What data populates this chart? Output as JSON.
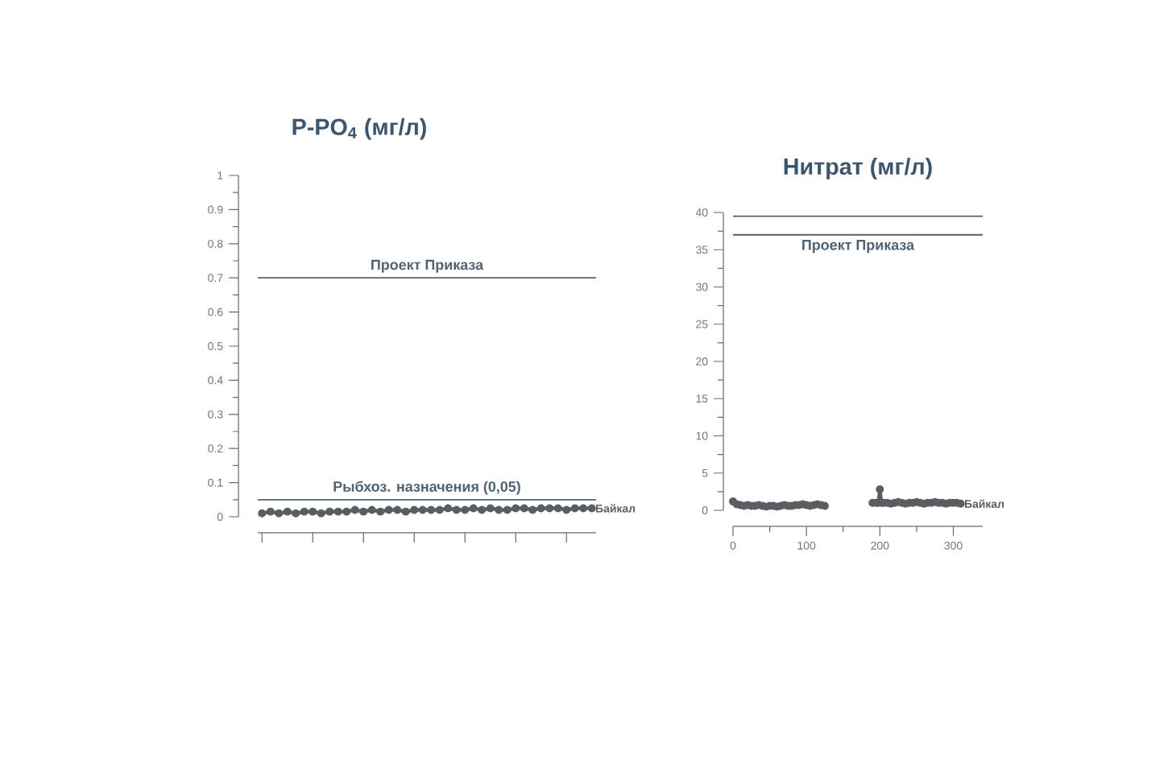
{
  "chart_data": [
    {
      "type": "line",
      "title": "P-PO$_{4}$ (мг/л)",
      "categories": [
        null,
        null,
        null,
        null,
        null,
        null,
        null,
        null,
        null,
        null,
        null,
        null,
        null,
        null,
        null,
        null,
        null,
        null,
        null,
        null,
        null,
        null,
        null,
        null,
        null,
        null,
        null,
        null,
        null,
        null,
        null,
        null,
        null,
        null,
        null,
        null,
        null,
        null,
        null,
        null
      ],
      "series": [
        {
          "name": "Байкал",
          "color": "#5a5e63",
          "values": [
            0.01,
            0.015,
            0.01,
            0.015,
            0.01,
            0.015,
            0.015,
            0.01,
            0.015,
            0.015,
            0.015,
            0.02,
            0.015,
            0.02,
            0.015,
            0.02,
            0.02,
            0.015,
            0.02,
            0.02,
            0.02,
            0.02,
            0.025,
            0.02,
            0.02,
            0.025,
            0.02,
            0.025,
            0.02,
            0.02,
            0.025,
            0.025,
            0.02,
            0.025,
            0.025,
            0.025,
            0.02,
            0.025,
            0.025,
            0.025
          ]
        }
      ],
      "ylim": [
        0,
        1
      ],
      "yticks": [
        0,
        {
          "value": 0.05,
          "label": null
        },
        0.1,
        {
          "value": 0.15,
          "label": null
        },
        0.2,
        {
          "value": 0.25,
          "label": null
        },
        0.3,
        {
          "value": 0.35,
          "label": null
        },
        0.4,
        {
          "value": 0.45,
          "label": null
        },
        0.5,
        {
          "value": 0.55,
          "label": null
        },
        0.6,
        {
          "value": 0.65,
          "label": null
        },
        0.7,
        {
          "value": 0.75,
          "label": null
        },
        0.8,
        {
          "value": 0.85,
          "label": null
        },
        0.9,
        {
          "value": 0.95,
          "label": null
        },
        1
      ],
      "ref_lines": [
        {
          "axis": "y",
          "value": 0.7,
          "label": "Проект Приказа",
          "color": "#4f6373"
        },
        {
          "axis": "y",
          "value": 0.05,
          "label": "Рыбхоз. назначения (0,05)",
          "color": "#4f6373"
        }
      ],
      "marker": "circle",
      "tick_labels": "y"
    },
    {
      "type": "line",
      "title": "Нитрат (мг/л)",
      "x": [
        0,
        5,
        10,
        15,
        20,
        25,
        30,
        35,
        40,
        45,
        50,
        55,
        60,
        65,
        70,
        75,
        80,
        85,
        90,
        95,
        100,
        105,
        110,
        115,
        120,
        125,
        160,
        190,
        195,
        198,
        200,
        202,
        205,
        210,
        215,
        220,
        225,
        230,
        235,
        240,
        245,
        250,
        255,
        260,
        265,
        270,
        275,
        280,
        285,
        290,
        295,
        300,
        305,
        310
      ],
      "series": [
        {
          "name": "Байкал",
          "color": "#5a5e63",
          "values": [
            1.2,
            0.8,
            0.7,
            0.6,
            0.7,
            0.6,
            0.6,
            0.7,
            0.6,
            0.5,
            0.6,
            0.6,
            0.5,
            0.6,
            0.7,
            0.6,
            0.6,
            0.7,
            0.7,
            0.8,
            0.7,
            0.6,
            0.7,
            0.8,
            0.7,
            0.6,
            null,
            1.0,
            1.0,
            1.0,
            2.8,
            1.0,
            1.0,
            1.0,
            0.9,
            1.0,
            1.1,
            1.0,
            0.9,
            1.0,
            1.0,
            1.1,
            1.0,
            0.9,
            1.0,
            1.0,
            1.1,
            1.0,
            1.0,
            0.9,
            1.0,
            1.0,
            1.0,
            0.9
          ]
        }
      ],
      "xlim": [
        0,
        340
      ],
      "xticks": [
        0,
        {
          "value": 50,
          "label": null
        },
        100,
        {
          "value": 150,
          "label": null
        },
        200,
        {
          "value": 250,
          "label": null
        },
        300
      ],
      "ylim": [
        0,
        40
      ],
      "yticks": [
        0,
        {
          "value": 2.5,
          "label": null
        },
        5,
        {
          "value": 7.5,
          "label": null
        },
        10,
        {
          "value": 12.5,
          "label": null
        },
        15,
        {
          "value": 17.5,
          "label": null
        },
        20,
        {
          "value": 22.5,
          "label": null
        },
        25,
        {
          "value": 27.5,
          "label": null
        },
        30,
        {
          "value": 32.5,
          "label": null
        },
        35,
        {
          "value": 37.5,
          "label": null
        },
        40
      ],
      "ref_lines": [
        {
          "axis": "y",
          "value": 39.5,
          "color": "#4f6373"
        },
        {
          "axis": "y",
          "value": 37,
          "label": "Проект Приказа",
          "color": "#4f6373"
        }
      ],
      "marker": "circle"
    }
  ]
}
